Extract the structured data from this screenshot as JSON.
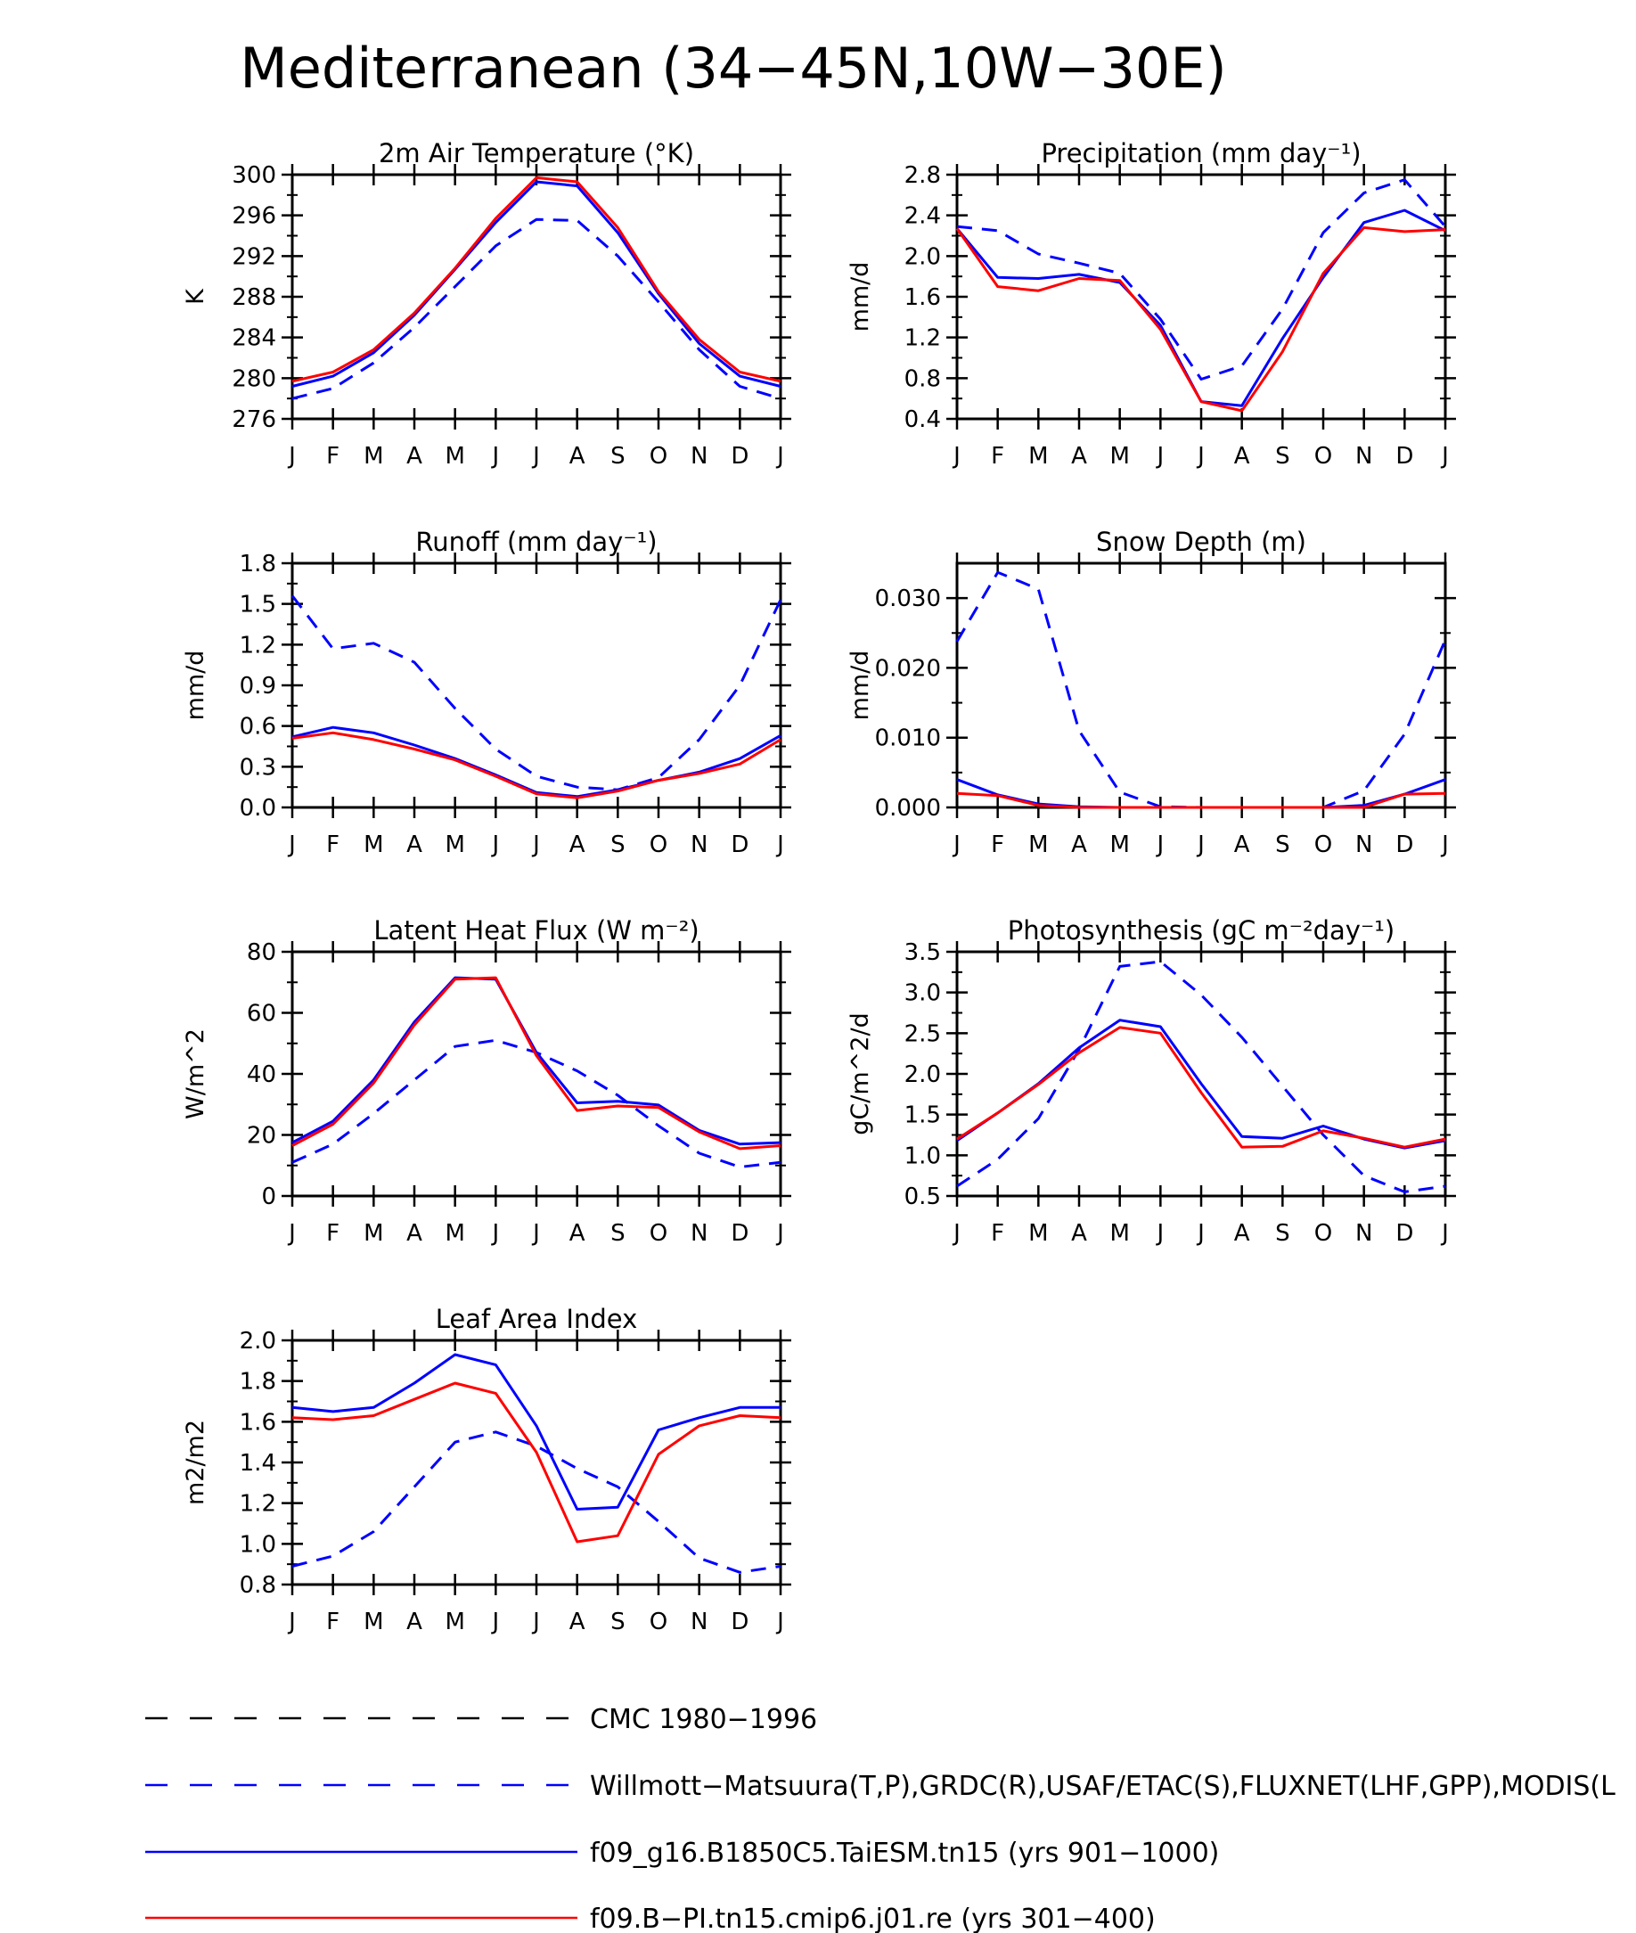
{
  "main_title": "Mediterranean (34−45N,10W−30E)",
  "colors": {
    "model_blue": "#0000ff",
    "model_red": "#ff0000",
    "obs_black": "#000000",
    "axis": "#000000"
  },
  "legend": [
    {
      "label": "CMC 1980−1996",
      "color": "#000000",
      "style": "dashed"
    },
    {
      "label": "Willmott−Matsuura(T,P),GRDC(R),USAF/ETAC(S),FLUXNET(LHF,GPP),MODIS(L",
      "color": "#0000ff",
      "style": "dashed"
    },
    {
      "label": "f09_g16.B1850C5.TaiESM.tn15 (yrs 901−1000)",
      "color": "#0000ff",
      "style": "solid"
    },
    {
      "label": "f09.B−PI.tn15.cmip6.j01.re (yrs 301−400)",
      "color": "#ff0000",
      "style": "solid"
    }
  ],
  "chart_data": [
    {
      "type": "line",
      "title": "2m Air Temperature (°K)",
      "ylabel": "K",
      "ylim": [
        276,
        300
      ],
      "yticks": [
        "276",
        "280",
        "284",
        "288",
        "292",
        "296",
        "300"
      ],
      "categories": [
        "J",
        "F",
        "M",
        "A",
        "M",
        "J",
        "J",
        "A",
        "S",
        "O",
        "N",
        "D",
        "J"
      ],
      "series": [
        {
          "color": "#0000ff",
          "dash": true,
          "values": [
            278.0,
            279.0,
            281.5,
            285.0,
            289.0,
            293.0,
            295.6,
            295.5,
            292.0,
            287.5,
            282.8,
            279.2,
            278.0
          ]
        },
        {
          "color": "#0000ff",
          "dash": false,
          "values": [
            279.2,
            280.2,
            282.5,
            286.2,
            290.7,
            295.3,
            299.3,
            298.9,
            294.3,
            288.3,
            283.4,
            280.2,
            279.2
          ]
        },
        {
          "color": "#ff0000",
          "dash": false,
          "values": [
            279.7,
            280.6,
            282.8,
            286.4,
            290.8,
            295.7,
            299.7,
            299.3,
            294.8,
            288.5,
            283.8,
            280.6,
            279.7
          ]
        }
      ]
    },
    {
      "type": "line",
      "title": "Precipitation (mm day⁻¹)",
      "ylabel": "mm/d",
      "ylim": [
        0.4,
        2.8
      ],
      "yticks": [
        "0.4",
        "0.8",
        "1.2",
        "1.6",
        "2.0",
        "2.4",
        "2.8"
      ],
      "categories": [
        "J",
        "F",
        "M",
        "A",
        "M",
        "J",
        "J",
        "A",
        "S",
        "O",
        "N",
        "D",
        "J"
      ],
      "series": [
        {
          "color": "#0000ff",
          "dash": true,
          "values": [
            2.29,
            2.25,
            2.02,
            1.93,
            1.83,
            1.38,
            0.79,
            0.92,
            1.48,
            2.23,
            2.62,
            2.75,
            2.29
          ]
        },
        {
          "color": "#0000ff",
          "dash": false,
          "values": [
            2.27,
            1.79,
            1.78,
            1.82,
            1.74,
            1.32,
            0.57,
            0.53,
            1.19,
            1.79,
            2.33,
            2.45,
            2.25
          ]
        },
        {
          "color": "#ff0000",
          "dash": false,
          "values": [
            2.27,
            1.7,
            1.66,
            1.78,
            1.76,
            1.28,
            0.57,
            0.48,
            1.06,
            1.83,
            2.28,
            2.24,
            2.26
          ]
        }
      ]
    },
    {
      "type": "line",
      "title": "Runoff (mm day⁻¹)",
      "ylabel": "mm/d",
      "ylim": [
        0.0,
        1.8
      ],
      "yticks": [
        "0.0",
        "0.3",
        "0.6",
        "0.9",
        "1.2",
        "1.5",
        "1.8"
      ],
      "categories": [
        "J",
        "F",
        "M",
        "A",
        "M",
        "J",
        "J",
        "A",
        "S",
        "O",
        "N",
        "D",
        "J"
      ],
      "series": [
        {
          "color": "#0000ff",
          "dash": true,
          "values": [
            1.56,
            1.17,
            1.21,
            1.07,
            0.73,
            0.43,
            0.23,
            0.15,
            0.13,
            0.22,
            0.5,
            0.9,
            1.53
          ]
        },
        {
          "color": "#0000ff",
          "dash": false,
          "values": [
            0.52,
            0.59,
            0.55,
            0.46,
            0.36,
            0.24,
            0.11,
            0.08,
            0.13,
            0.2,
            0.26,
            0.36,
            0.53
          ]
        },
        {
          "color": "#ff0000",
          "dash": false,
          "values": [
            0.51,
            0.55,
            0.5,
            0.43,
            0.35,
            0.23,
            0.1,
            0.07,
            0.12,
            0.2,
            0.25,
            0.32,
            0.5
          ]
        }
      ]
    },
    {
      "type": "line",
      "title": "Snow Depth (m)",
      "ylabel": "mm/d",
      "ylim": [
        0.0,
        0.035
      ],
      "yticks": [
        "0.000",
        "0.010",
        "0.020",
        "0.030"
      ],
      "ytick_values": [
        0.0,
        0.01,
        0.02,
        0.03
      ],
      "categories": [
        "J",
        "F",
        "M",
        "A",
        "M",
        "J",
        "J",
        "A",
        "S",
        "O",
        "N",
        "D",
        "J"
      ],
      "series": [
        {
          "color": "#0000ff",
          "dash": true,
          "values": [
            0.0238,
            0.0337,
            0.0313,
            0.011,
            0.0022,
            0.0001,
            0.0,
            0.0,
            0.0,
            0.0,
            0.0024,
            0.0105,
            0.024
          ]
        },
        {
          "color": "#0000ff",
          "dash": false,
          "values": [
            0.004,
            0.0018,
            0.0005,
            0.0001,
            0.0,
            0.0,
            0.0,
            0.0,
            0.0,
            0.0,
            0.0003,
            0.0019,
            0.004
          ]
        },
        {
          "color": "#ff0000",
          "dash": false,
          "values": [
            0.002,
            0.0017,
            0.0003,
            0.0,
            0.0,
            0.0,
            0.0,
            0.0,
            0.0,
            0.0,
            0.0,
            0.0019,
            0.002
          ]
        }
      ]
    },
    {
      "type": "line",
      "title": "Latent Heat Flux (W m⁻²)",
      "ylabel": "W/m^2",
      "ylim": [
        0,
        80
      ],
      "yticks": [
        "0",
        "20",
        "40",
        "60",
        "80"
      ],
      "categories": [
        "J",
        "F",
        "M",
        "A",
        "M",
        "J",
        "J",
        "A",
        "S",
        "O",
        "N",
        "D",
        "J"
      ],
      "series": [
        {
          "color": "#0000ff",
          "dash": true,
          "values": [
            11,
            17,
            27,
            38,
            49,
            51,
            47,
            41,
            33,
            23,
            14,
            9.5,
            11
          ]
        },
        {
          "color": "#0000ff",
          "dash": false,
          "values": [
            17.5,
            24.5,
            38,
            57,
            71.5,
            71,
            47,
            30.5,
            31,
            29.8,
            21.5,
            17,
            17.5
          ]
        },
        {
          "color": "#ff0000",
          "dash": false,
          "values": [
            16.5,
            23.5,
            37,
            56,
            71,
            71.5,
            46,
            28,
            29.5,
            29,
            21,
            15.5,
            16.5
          ]
        }
      ]
    },
    {
      "type": "line",
      "title": "Photosynthesis (gC m⁻²day⁻¹)",
      "ylabel": "gC/m^2/d",
      "ylim": [
        0.5,
        3.5
      ],
      "yticks": [
        "0.5",
        "1.0",
        "1.5",
        "2.0",
        "2.5",
        "3.0",
        "3.5"
      ],
      "categories": [
        "J",
        "F",
        "M",
        "A",
        "M",
        "J",
        "J",
        "A",
        "S",
        "O",
        "N",
        "D",
        "J"
      ],
      "series": [
        {
          "color": "#0000ff",
          "dash": true,
          "values": [
            0.62,
            0.95,
            1.45,
            2.3,
            3.32,
            3.38,
            2.97,
            2.45,
            1.85,
            1.25,
            0.75,
            0.55,
            0.62
          ]
        },
        {
          "color": "#0000ff",
          "dash": false,
          "values": [
            1.18,
            1.52,
            1.88,
            2.32,
            2.66,
            2.58,
            1.88,
            1.23,
            1.21,
            1.36,
            1.2,
            1.09,
            1.18
          ]
        },
        {
          "color": "#ff0000",
          "dash": false,
          "values": [
            1.2,
            1.52,
            1.87,
            2.26,
            2.57,
            2.5,
            1.77,
            1.1,
            1.11,
            1.3,
            1.21,
            1.1,
            1.2
          ]
        }
      ]
    },
    {
      "type": "line",
      "title": "Leaf Area Index",
      "ylabel": "m2/m2",
      "ylim": [
        0.8,
        2.0
      ],
      "yticks": [
        "0.8",
        "1.0",
        "1.2",
        "1.4",
        "1.6",
        "1.8",
        "2.0"
      ],
      "categories": [
        "J",
        "F",
        "M",
        "A",
        "M",
        "J",
        "J",
        "A",
        "S",
        "O",
        "N",
        "D",
        "J"
      ],
      "series": [
        {
          "color": "#0000ff",
          "dash": true,
          "values": [
            0.89,
            0.94,
            1.06,
            1.28,
            1.5,
            1.55,
            1.48,
            1.37,
            1.28,
            1.11,
            0.93,
            0.86,
            0.89
          ]
        },
        {
          "color": "#0000ff",
          "dash": false,
          "values": [
            1.67,
            1.65,
            1.67,
            1.79,
            1.93,
            1.88,
            1.58,
            1.17,
            1.18,
            1.56,
            1.62,
            1.67,
            1.67
          ]
        },
        {
          "color": "#ff0000",
          "dash": false,
          "values": [
            1.62,
            1.61,
            1.63,
            1.71,
            1.79,
            1.74,
            1.45,
            1.01,
            1.04,
            1.44,
            1.58,
            1.63,
            1.62
          ]
        }
      ]
    }
  ]
}
